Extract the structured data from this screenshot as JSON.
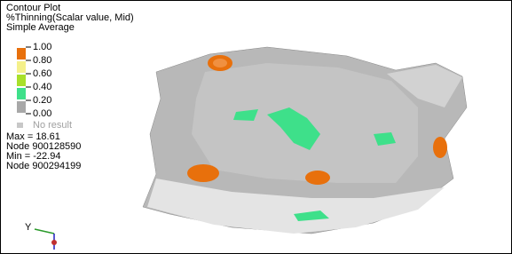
{
  "header": {
    "title": "Contour Plot",
    "result": "%Thinning(Scalar value, Mid)",
    "averaging": "Simple Average"
  },
  "legend": {
    "labels": [
      "1.00",
      "0.80",
      "0.60",
      "0.40",
      "0.20",
      "0.00"
    ],
    "band_colors": [
      "#e8700c",
      "#f4f08a",
      "#a8e02a",
      "#3ee08a",
      "#a8a8a8"
    ],
    "no_result": {
      "label": "No result",
      "color": "#c8c8c8"
    }
  },
  "stats": [
    "Max = 18.61",
    "Node 900128590",
    "Min = -22.94",
    "Node 900294199"
  ],
  "axes": {
    "y": "Y"
  }
}
